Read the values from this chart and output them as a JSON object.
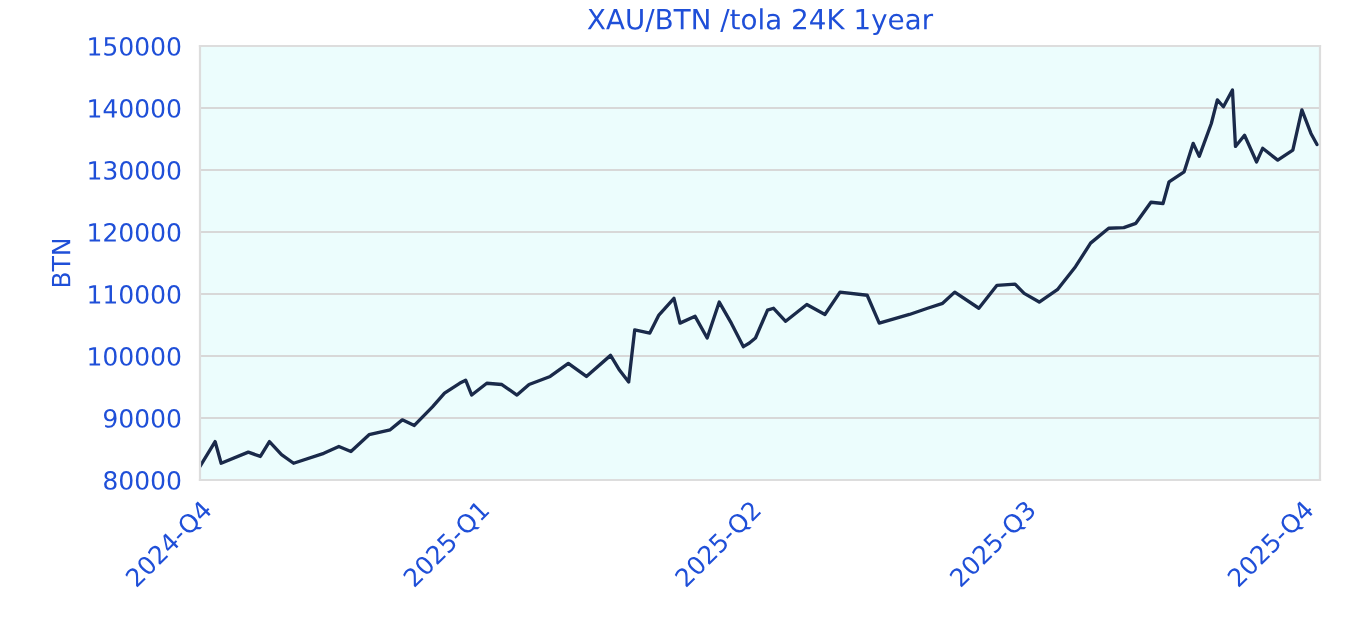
{
  "chart_data": {
    "type": "line",
    "title": "XAU/BTN /tola 24K 1year",
    "ylabel": "BTN",
    "x": [
      "2024-10-01",
      "2024-10-06",
      "2024-10-08",
      "2024-10-17",
      "2024-10-21",
      "2024-10-24",
      "2024-10-28",
      "2024-11-01",
      "2024-11-11",
      "2024-11-16",
      "2024-11-20",
      "2024-11-26",
      "2024-12-03",
      "2024-12-07",
      "2024-12-11",
      "2024-12-17",
      "2024-12-21",
      "2024-12-26",
      "2024-12-28",
      "2024-12-30",
      "2025-01-04",
      "2025-01-09",
      "2025-01-14",
      "2025-01-18",
      "2025-01-25",
      "2025-01-31",
      "2025-02-06",
      "2025-02-14",
      "2025-02-17",
      "2025-02-20",
      "2025-02-22",
      "2025-02-27",
      "2025-03-02",
      "2025-03-07",
      "2025-03-09",
      "2025-03-14",
      "2025-03-18",
      "2025-03-22",
      "2025-03-26",
      "2025-03-30",
      "2025-04-01",
      "2025-04-03",
      "2025-04-07",
      "2025-04-09",
      "2025-04-13",
      "2025-04-20",
      "2025-04-26",
      "2025-05-01",
      "2025-05-10",
      "2025-05-14",
      "2025-05-24",
      "2025-05-30",
      "2025-06-04",
      "2025-06-08",
      "2025-06-16",
      "2025-06-22",
      "2025-06-28",
      "2025-07-01",
      "2025-07-06",
      "2025-07-12",
      "2025-07-18",
      "2025-07-23",
      "2025-07-29",
      "2025-08-03",
      "2025-08-07",
      "2025-08-12",
      "2025-08-16",
      "2025-08-18",
      "2025-08-23",
      "2025-08-26",
      "2025-08-28",
      "2025-09-01",
      "2025-09-03",
      "2025-09-05",
      "2025-09-08",
      "2025-09-09",
      "2025-09-12",
      "2025-09-16",
      "2025-09-18",
      "2025-09-23",
      "2025-09-28",
      "2025-10-01",
      "2025-10-04",
      "2025-10-06"
    ],
    "series": [
      {
        "color": "#1a2a4a",
        "values": [
          82200,
          86200,
          82700,
          84500,
          83800,
          86200,
          84100,
          82700,
          84300,
          85400,
          84600,
          87300,
          88100,
          89700,
          88800,
          91800,
          94000,
          95600,
          96100,
          93700,
          95600,
          95400,
          93700,
          95400,
          96700,
          98800,
          96700,
          100100,
          97700,
          95800,
          104200,
          103700,
          106600,
          109300,
          105300,
          106400,
          102900,
          108700,
          105300,
          101500,
          102100,
          102900,
          107400,
          107700,
          105600,
          108300,
          106700,
          110300,
          109800,
          105300,
          106700,
          107700,
          108500,
          110300,
          107700,
          111400,
          111600,
          110100,
          108700,
          110700,
          114400,
          118200,
          120600,
          120700,
          121400,
          124800,
          124600,
          128100,
          129700,
          134300,
          132200,
          137500,
          141300,
          140200,
          142900,
          133800,
          135600,
          131300,
          133500,
          131600,
          133200,
          139700,
          135900,
          134100
        ]
      }
    ],
    "xlim": [
      "2024-10-01",
      "2025-10-07"
    ],
    "xticks": [
      {
        "value": "2024-10-01",
        "label": "2024-Q4"
      },
      {
        "value": "2025-01-01",
        "label": "2025-Q1"
      },
      {
        "value": "2025-04-01",
        "label": "2025-Q2"
      },
      {
        "value": "2025-07-01",
        "label": "2025-Q3"
      },
      {
        "value": "2025-10-01",
        "label": "2025-Q4"
      }
    ],
    "ylim": [
      80000,
      150000
    ],
    "yticks": [
      80000,
      90000,
      100000,
      110000,
      120000,
      130000,
      140000,
      150000
    ],
    "grid": "y",
    "legend": false,
    "marker": "none",
    "line_style": "solid"
  }
}
